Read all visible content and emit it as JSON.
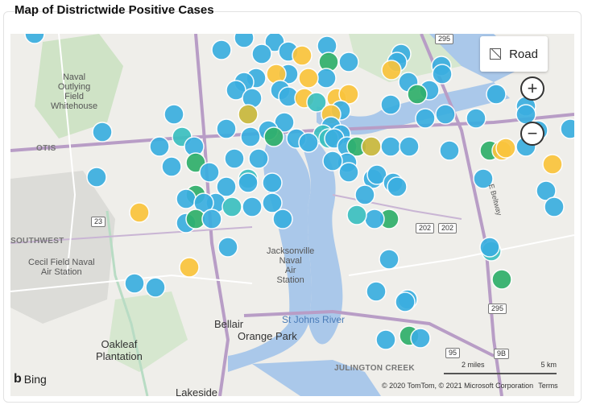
{
  "title": "Map of Districtwide Positive Cases",
  "map_style_label": "Road",
  "zoom_in": "+",
  "zoom_out": "−",
  "labels": {
    "naval_outlying": "Naval\nOutlying\nField\nWhitehouse",
    "otis": "OTIS",
    "southwest": "SOUTHWEST",
    "cecil": "Cecil Field Naval\nAir Station",
    "jax_nas": "Jacksonville\nNaval\nAir\nStation",
    "bellair": "Bellair",
    "orange_park": "Orange Park",
    "st_johns": "St Johns River",
    "oakleaf": "Oakleaf\nPlantation",
    "julington": "JULINGTON CREEK",
    "lakeside": "Lakeside",
    "e_beltway": "E Beltway"
  },
  "shields": {
    "r295": "295",
    "r23": "23",
    "r202a": "202",
    "r202b": "202",
    "r95": "95",
    "r9b": "9B",
    "r295b": "295"
  },
  "bing": "Bing",
  "scale": {
    "miles": "2 miles",
    "km": "5 km"
  },
  "copyright": "© 2020 TomTom, © 2021 Microsoft Corporation",
  "terms": "Terms",
  "colors": {
    "blue": "#3aaee0",
    "teal": "#3cc0c0",
    "green": "#2fb06a",
    "yellow": "#fac43c",
    "olive": "#c8b83c"
  }
}
